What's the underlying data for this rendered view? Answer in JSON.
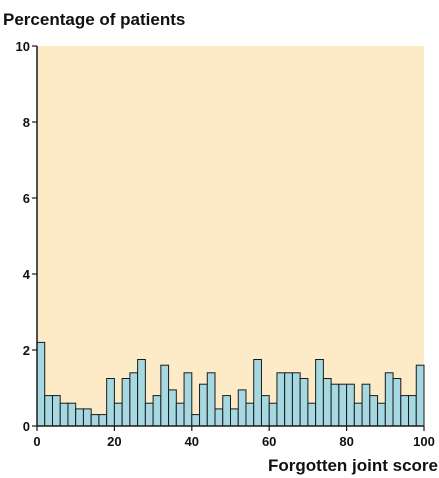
{
  "chart_data": {
    "type": "bar",
    "title": "",
    "ylabel": "Percentage of patients",
    "xlabel": "Forgotten joint score",
    "xlim": [
      0,
      100
    ],
    "ylim": [
      0,
      10
    ],
    "xticks": [
      0,
      20,
      40,
      60,
      80,
      100
    ],
    "yticks": [
      0,
      2,
      4,
      6,
      8,
      10
    ],
    "bin_width": 2.083,
    "grid": false,
    "colors": {
      "plot_background": "#fdebc8",
      "bar_fill": "#a6d8e2",
      "bar_stroke": "#1a1a1a",
      "axis": "#1a1a1a"
    },
    "values": [
      2.2,
      0.8,
      0.8,
      0.6,
      0.6,
      0.45,
      0.45,
      0.3,
      0.3,
      1.25,
      0.6,
      1.25,
      1.4,
      1.75,
      0.6,
      0.8,
      1.6,
      0.95,
      0.6,
      1.4,
      0.3,
      1.1,
      1.4,
      0.45,
      0.8,
      0.45,
      0.95,
      0.6,
      1.75,
      0.8,
      0.6,
      1.4,
      1.4,
      1.4,
      1.25,
      0.6,
      1.75,
      1.25,
      1.1,
      1.1,
      1.1,
      0.6,
      1.1,
      0.8,
      0.6,
      1.4,
      1.25,
      0.8,
      0.8,
      1.6
    ]
  }
}
